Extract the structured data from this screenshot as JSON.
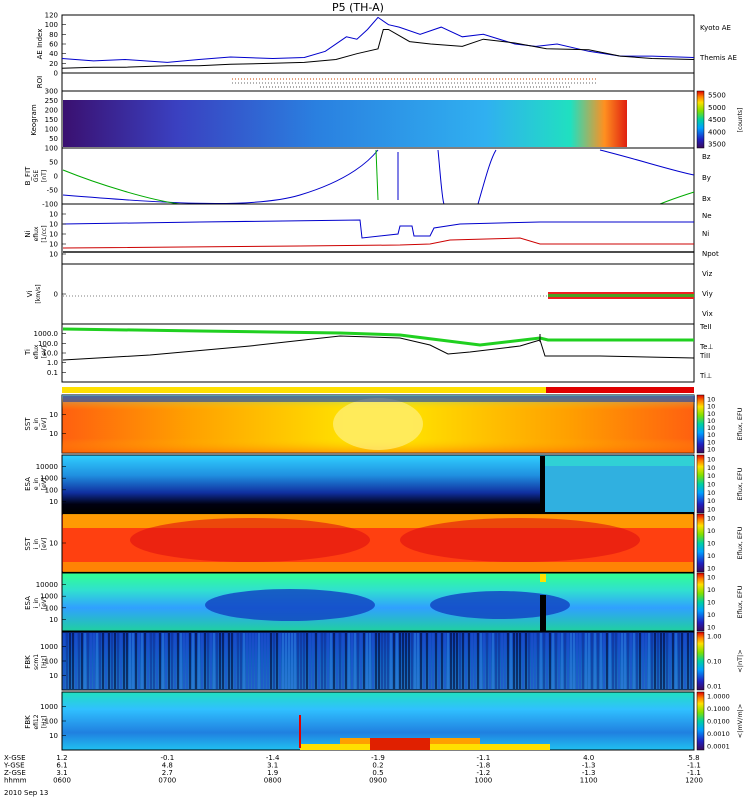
{
  "chart_data": {
    "type": "multi-panel",
    "title": "P5 (TH-A)",
    "date": "2010 Sep 13",
    "x_axis": {
      "rows": [
        {
          "label": "X-GSE",
          "values": [
            "1.2",
            "-0.1",
            "-1.4",
            "-1.9",
            "-1.1",
            "4.0",
            "5.8"
          ]
        },
        {
          "label": "Y-GSE",
          "values": [
            "6.1",
            "4.8",
            "3.1",
            "0.2",
            "-1.8",
            "-1.3",
            "-1.1"
          ]
        },
        {
          "label": "Z-GSE",
          "values": [
            "3.1",
            "2.7",
            "1.9",
            "0.5",
            "-1.2",
            "-1.3",
            "-1.1"
          ]
        },
        {
          "label": "hhmm",
          "values": [
            "0600",
            "0700",
            "0800",
            "0900",
            "1000",
            "1100",
            "1200"
          ]
        }
      ]
    },
    "panels": [
      {
        "id": "ae",
        "ylabel": "AE Index",
        "yticks": [
          "0",
          "20",
          "40",
          "60",
          "80",
          "100",
          "120"
        ],
        "ylim": [
          0,
          120
        ],
        "legend": [
          "Kyoto AE",
          "Themis AE"
        ],
        "colors": {
          "kyoto": "#0000cc",
          "themis": "#000000"
        },
        "series": [
          {
            "name": "Kyoto AE",
            "x": [
              6.0,
              6.3,
              6.6,
              7.0,
              7.3,
              7.6,
              8.0,
              8.3,
              8.5,
              8.7,
              8.8,
              8.9,
              9.0,
              9.1,
              9.2,
              9.4,
              9.6,
              9.8,
              10.0,
              10.3,
              10.5,
              10.7,
              11.0,
              11.3,
              11.6,
              12.0
            ],
            "y": [
              30,
              25,
              28,
              22,
              28,
              33,
              30,
              32,
              45,
              75,
              70,
              90,
              115,
              100,
              95,
              80,
              95,
              75,
              80,
              60,
              55,
              60,
              45,
              35,
              35,
              32
            ]
          },
          {
            "name": "Themis AE",
            "x": [
              6.0,
              6.3,
              6.6,
              7.0,
              7.3,
              7.6,
              8.0,
              8.3,
              8.6,
              8.8,
              9.0,
              9.05,
              9.1,
              9.3,
              9.5,
              9.8,
              10.0,
              10.3,
              10.6,
              11.0,
              11.3,
              11.6,
              12.0
            ],
            "y": [
              10,
              12,
              12,
              15,
              15,
              18,
              20,
              22,
              28,
              40,
              50,
              90,
              90,
              65,
              60,
              55,
              70,
              62,
              50,
              48,
              35,
              30,
              28
            ]
          }
        ]
      },
      {
        "id": "roi",
        "ylabel": "ROI"
      },
      {
        "id": "keogram",
        "ylabel": "Keogram",
        "yticks": [
          "50",
          "100",
          "150",
          "200",
          "250",
          "300"
        ],
        "ylim": [
          0,
          300
        ],
        "colorbar": {
          "label": "[counts]",
          "ticks": [
            "3500",
            "4000",
            "4500",
            "5000",
            "5500"
          ]
        }
      },
      {
        "id": "bfit",
        "ylabel": "B_FIT",
        "ylabel2": "GSE",
        "ylabel3": "[nT]",
        "yticks": [
          "-100",
          "-50",
          "0",
          "50",
          "100"
        ],
        "ylim": [
          -100,
          100
        ],
        "legend": [
          "Bz",
          "By",
          "Bx"
        ],
        "colors": {
          "Bz": "#cc0000",
          "By": "#00aa00",
          "Bx": "#0000cc"
        }
      },
      {
        "id": "ni",
        "ylabel": "Ni",
        "ylabel2": "[1/cc]",
        "ylabel3": "eflux",
        "yticks": [
          "10",
          "10",
          "10",
          "10",
          "10"
        ],
        "legend": [
          "Ne",
          "Ni",
          "Npot"
        ],
        "colors": {
          "Ne": "#cc0000",
          "Ni": "#0000cc",
          "Npot": "#000000"
        }
      },
      {
        "id": "vi",
        "ylabel": "Vi",
        "ylabel2": "[km/s]",
        "yticks": [
          "0"
        ],
        "legend": [
          "Viz",
          "Viy",
          "Vix"
        ],
        "colors": {
          "Viz": "#cc0000",
          "Viy": "#00aa00",
          "Vix": "#0000cc"
        }
      },
      {
        "id": "ti",
        "ylabel": "Ti",
        "ylabel2": "eflux",
        "ylabel3": "[eV]",
        "yticks": [
          "0.1",
          "1.0",
          "10.0",
          "100.0",
          "1000.0"
        ],
        "legend": [
          "TeII",
          "Te⊥",
          "TiII",
          "Ti⊥"
        ],
        "colors": {
          "TeII": "#000000",
          "Te⊥": "#cc0000",
          "TiII": "#00aa00",
          "Ti⊥": "#0000cc"
        }
      },
      {
        "id": "sst_e",
        "ylabel": "SST",
        "ylabel2": "e_in",
        "ylabel3": "[eV]",
        "yticks": [
          "10",
          "10"
        ],
        "colorbar": {
          "label": "Eflux, EFU",
          "ticks": [
            "10",
            "10",
            "10",
            "10",
            "10",
            "10",
            "10",
            "10"
          ]
        }
      },
      {
        "id": "esa_e",
        "ylabel": "ESA",
        "ylabel2": "e_in",
        "ylabel3": "[eV]",
        "yticks": [
          "10",
          "100",
          "1000",
          "10000"
        ],
        "colorbar": {
          "label": "Eflux, EFU",
          "ticks": [
            "10",
            "10",
            "10",
            "10",
            "10",
            "10",
            "10"
          ]
        }
      },
      {
        "id": "sst_i",
        "ylabel": "SST",
        "ylabel2": "i_in",
        "ylabel3": "[eV]",
        "yticks": [
          "10"
        ],
        "colorbar": {
          "label": "Eflux, EFU",
          "ticks": [
            "10",
            "10",
            "10",
            "10",
            "10"
          ]
        }
      },
      {
        "id": "esa_i",
        "ylabel": "ESA",
        "ylabel2": "i_in",
        "ylabel3": "[eV]",
        "yticks": [
          "10",
          "100",
          "1000",
          "10000"
        ],
        "colorbar": {
          "label": "Eflux, EFU",
          "ticks": [
            "10",
            "10",
            "10",
            "10",
            "10"
          ]
        }
      },
      {
        "id": "fbk_b",
        "ylabel": "FBK",
        "ylabel2": "scm1",
        "ylabel3": "[Hz]",
        "yticks": [
          "10",
          "100",
          "1000"
        ],
        "colorbar": {
          "label": "<|nT|>",
          "ticks": [
            "0.01",
            "0.10",
            "1.00"
          ]
        }
      },
      {
        "id": "fbk_e",
        "ylabel": "FBK",
        "ylabel2": "efi12",
        "ylabel3": "[Hz]",
        "yticks": [
          "10",
          "100",
          "1000"
        ],
        "colorbar": {
          "label": "<|mV/m|>",
          "ticks": [
            "0.0001",
            "0.0010",
            "0.0100",
            "0.1000",
            "1.0000"
          ]
        }
      }
    ]
  }
}
